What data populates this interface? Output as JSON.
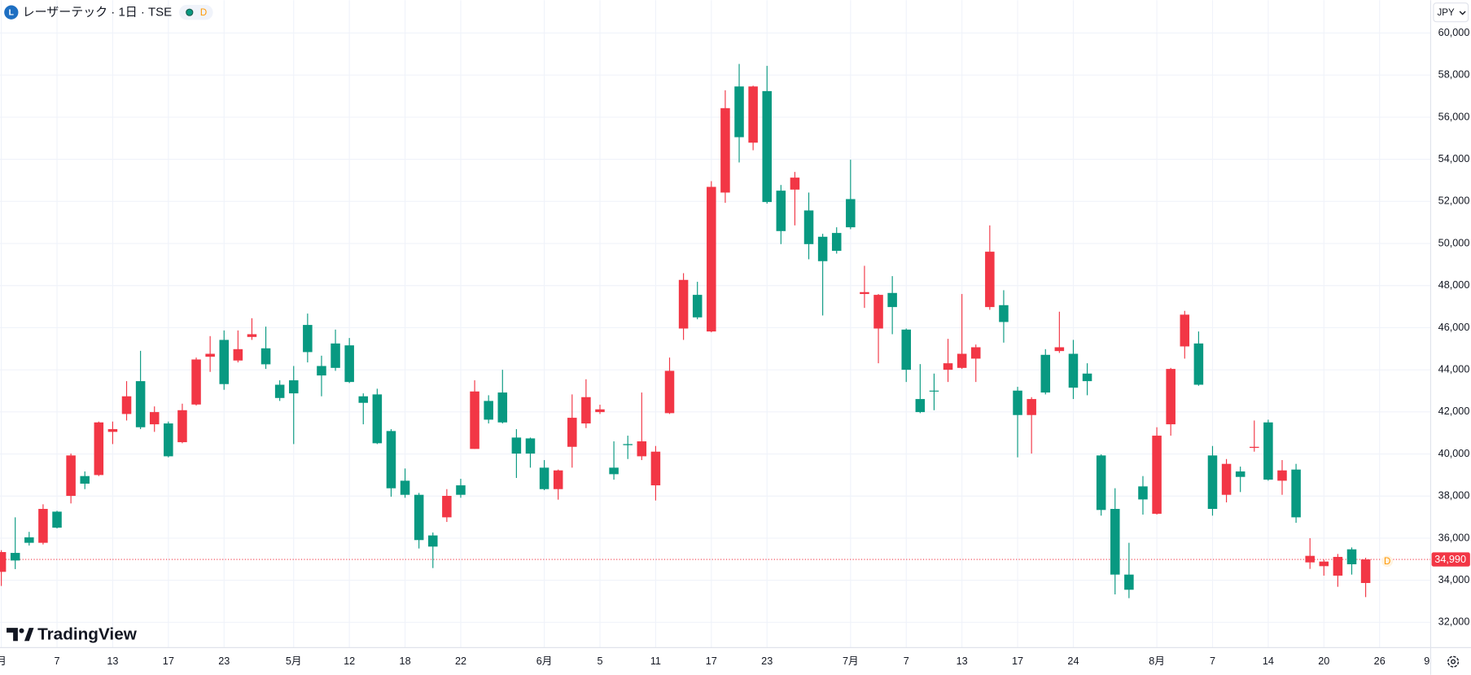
{
  "chart_data": {
    "type": "candlestick",
    "title": "レーザーテック · 1日 · TSE",
    "symbol_icon": "L",
    "interval_badge": "D",
    "currency": "JPY",
    "brand": "TradingView",
    "last_marker": "D",
    "current_price": {
      "value": 34990,
      "label": "34,990"
    },
    "up_color": "#f23645",
    "down_color": "#089981",
    "grid": true,
    "ylim": [
      30800,
      61560
    ],
    "yticks": [
      {
        "value": 32000,
        "label": "32,000"
      },
      {
        "value": 34000,
        "label": "34,000"
      },
      {
        "value": 36000,
        "label": "36,000"
      },
      {
        "value": 38000,
        "label": "38,000"
      },
      {
        "value": 40000,
        "label": "40,000"
      },
      {
        "value": 42000,
        "label": "42,000"
      },
      {
        "value": 44000,
        "label": "44,000"
      },
      {
        "value": 46000,
        "label": "46,000"
      },
      {
        "value": 48000,
        "label": "48,000"
      },
      {
        "value": 50000,
        "label": "50,000"
      },
      {
        "value": 52000,
        "label": "52,000"
      },
      {
        "value": 54000,
        "label": "54,000"
      },
      {
        "value": 56000,
        "label": "56,000"
      },
      {
        "value": 58000,
        "label": "58,000"
      },
      {
        "value": 60000,
        "label": "60,000"
      }
    ],
    "categories": [
      "月",
      null,
      null,
      null,
      "7",
      null,
      null,
      null,
      "13",
      null,
      null,
      null,
      "17",
      null,
      null,
      null,
      "23",
      null,
      null,
      null,
      null,
      "5月",
      null,
      null,
      null,
      "12",
      null,
      null,
      null,
      "18",
      null,
      null,
      null,
      "22",
      null,
      null,
      null,
      null,
      null,
      "6月",
      null,
      null,
      null,
      "5",
      null,
      null,
      null,
      "11",
      null,
      null,
      null,
      "17",
      null,
      null,
      null,
      "23",
      null,
      null,
      null,
      null,
      null,
      "7月",
      null,
      null,
      null,
      "7",
      null,
      null,
      null,
      "13",
      null,
      null,
      null,
      "17",
      null,
      null,
      null,
      "24",
      null,
      null,
      null,
      null,
      null,
      "8月",
      null,
      null,
      null,
      "7",
      null,
      null,
      null,
      "14",
      null,
      null,
      null,
      "20",
      null,
      null,
      null,
      "26",
      null,
      null,
      null,
      "9"
    ],
    "open": [
      34400,
      35300,
      36040,
      35780,
      37260,
      38010,
      38950,
      39000,
      41050,
      41900,
      43460,
      41410,
      41450,
      40560,
      42350,
      44620,
      45420,
      44440,
      45560,
      45020,
      43290,
      43500,
      46130,
      44180,
      45250,
      45160,
      42740,
      42830,
      41090,
      38730,
      38060,
      36130,
      36990,
      38510,
      40240,
      42520,
      42920,
      40780,
      40740,
      39350,
      38330,
      40340,
      41450,
      41990,
      39350,
      40470,
      39890,
      38510,
      41940,
      45960,
      47560,
      45820,
      52420,
      57460,
      54790,
      57240,
      52510,
      52560,
      51570,
      50320,
      50500,
      52110,
      47600,
      45960,
      47650,
      45910,
      42610,
      43010,
      44000,
      44090,
      44530,
      46980,
      47070,
      43010,
      41850,
      44710,
      44890,
      44760,
      43820,
      39930,
      37390,
      34270,
      38460,
      37160,
      41410,
      45110,
      45250,
      39930,
      38060,
      39170,
      40290,
      41500,
      38730,
      39260,
      34850,
      34670,
      34220,
      35470,
      33870,
      null,
      null,
      null,
      null,
      null
    ],
    "high": [
      35430,
      36990,
      36300,
      37610,
      37300,
      40020,
      39170,
      41540,
      41540,
      43460,
      44900,
      42260,
      41540,
      42390,
      44580,
      45600,
      45870,
      45870,
      46450,
      46050,
      43500,
      44180,
      46670,
      44670,
      45910,
      45510,
      42880,
      43100,
      41180,
      39310,
      38150,
      36270,
      38330,
      38820,
      43500,
      42790,
      44000,
      41180,
      40780,
      39710,
      39260,
      42830,
      43550,
      42340,
      40600,
      40870,
      42920,
      40380,
      44580,
      48590,
      48180,
      52960,
      57280,
      58530,
      57500,
      58440,
      52780,
      53400,
      52420,
      50460,
      50770,
      53980,
      48940,
      47600,
      48450,
      45960,
      44270,
      43820,
      45470,
      47600,
      45200,
      50860,
      47780,
      43190,
      42700,
      44980,
      46760,
      45420,
      44310,
      39980,
      38370,
      35780,
      38950,
      41270,
      44090,
      46800,
      45820,
      40380,
      39760,
      39400,
      41590,
      41630,
      39710,
      39530,
      36000,
      34980,
      35250,
      35560,
      35070,
      null,
      null,
      null,
      null,
      null
    ],
    "low": [
      33730,
      34530,
      35650,
      35700,
      36460,
      37650,
      38330,
      38950,
      40470,
      41590,
      41180,
      41050,
      39840,
      40510,
      42300,
      43900,
      43050,
      44350,
      45420,
      44040,
      42520,
      40470,
      44350,
      42740,
      43950,
      43370,
      41410,
      40470,
      37970,
      37920,
      35510,
      34580,
      36770,
      37920,
      40240,
      41450,
      41450,
      38860,
      39350,
      38280,
      37830,
      39350,
      41230,
      41900,
      38780,
      39760,
      39710,
      37790,
      41900,
      45420,
      46400,
      45780,
      51930,
      53850,
      54430,
      51890,
      49970,
      50860,
      49250,
      46580,
      49520,
      50680,
      46940,
      44310,
      45690,
      43420,
      41940,
      42080,
      43420,
      44040,
      43420,
      46850,
      45290,
      39840,
      40020,
      42830,
      44800,
      42610,
      42790,
      37070,
      33330,
      33150,
      37120,
      37120,
      40870,
      44530,
      43240,
      37070,
      37700,
      38190,
      40110,
      38730,
      38060,
      36730,
      34540,
      34220,
      33690,
      34270,
      33200,
      null,
      null,
      null,
      null,
      null
    ],
    "close": [
      35340,
      34940,
      35780,
      37390,
      36500,
      39930,
      38590,
      41500,
      41180,
      42740,
      41270,
      41990,
      39890,
      42080,
      44490,
      44760,
      43320,
      44980,
      45690,
      44260,
      42660,
      42880,
      44840,
      43730,
      44090,
      43420,
      42430,
      40510,
      38370,
      38060,
      35910,
      35600,
      38010,
      38060,
      42970,
      41630,
      41500,
      40020,
      40020,
      38330,
      39220,
      41720,
      42700,
      42120,
      39040,
      40420,
      40600,
      40110,
      43950,
      48270,
      46490,
      52690,
      56430,
      55050,
      57460,
      51970,
      50590,
      53130,
      49970,
      49160,
      49650,
      50770,
      47690,
      47560,
      46980,
      44000,
      41990,
      42970,
      44310,
      44760,
      45070,
      49610,
      46270,
      41850,
      42610,
      42920,
      45070,
      43150,
      43460,
      37340,
      34270,
      33550,
      37840,
      40870,
      44040,
      46620,
      43290,
      37390,
      39530,
      38910,
      40340,
      38780,
      39220,
      36990,
      35160,
      34890,
      35110,
      34760,
      34990,
      null,
      null,
      null,
      null,
      null
    ]
  }
}
